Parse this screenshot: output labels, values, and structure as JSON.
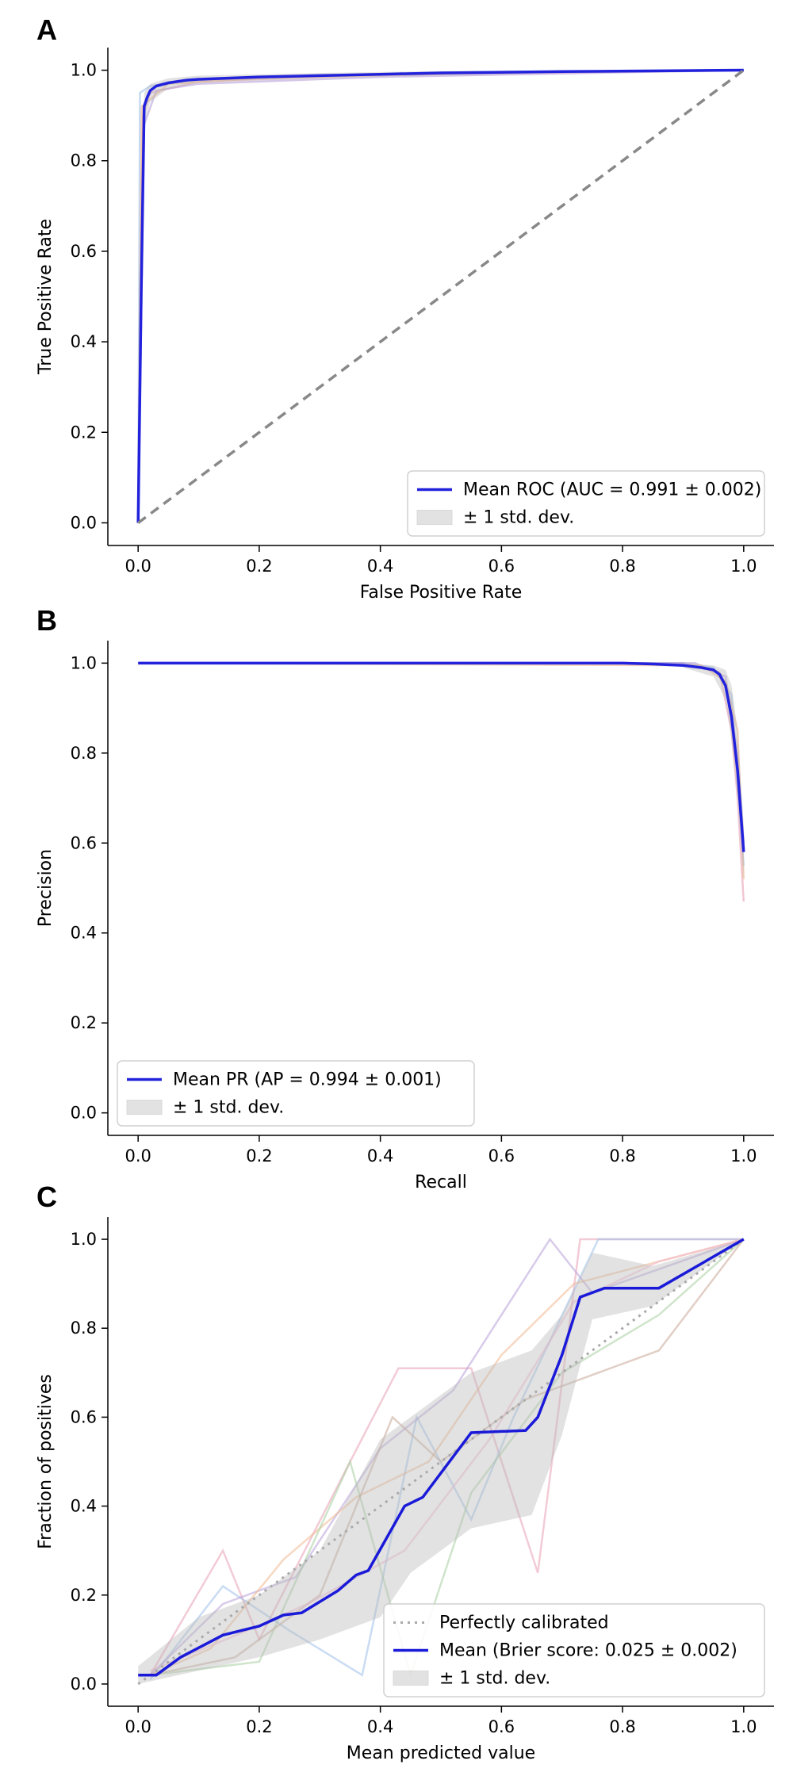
{
  "charts": [
    {
      "panel_label": "A",
      "xlabel": "False Positive Rate",
      "ylabel": "True Positive Rate"
    },
    {
      "panel_label": "B",
      "xlabel": "Recall",
      "ylabel": "Precision"
    },
    {
      "panel_label": "C",
      "xlabel": "Mean predicted value",
      "ylabel": "Fraction of positives"
    }
  ],
  "chart_data": [
    {
      "type": "line",
      "title": "",
      "xlabel": "False Positive Rate",
      "ylabel": "True Positive Rate",
      "xlim": [
        -0.05,
        1.05
      ],
      "ylim": [
        -0.05,
        1.05
      ],
      "xticks": [
        "0.0",
        "0.2",
        "0.4",
        "0.6",
        "0.8",
        "1.0"
      ],
      "yticks": [
        "0.0",
        "0.2",
        "0.4",
        "0.6",
        "0.8",
        "1.0"
      ],
      "legend_position": "lower-right",
      "series": [
        {
          "name": "Mean ROC (AUC = 0.991 ± 0.002)",
          "color": "#2222dd",
          "x": [
            0,
            0.005,
            0.01,
            0.015,
            0.02,
            0.03,
            0.05,
            0.08,
            0.1,
            0.2,
            0.3,
            0.4,
            0.5,
            0.7,
            0.9,
            1.0
          ],
          "y": [
            0,
            0.5,
            0.92,
            0.94,
            0.955,
            0.965,
            0.972,
            0.978,
            0.98,
            0.985,
            0.988,
            0.991,
            0.994,
            0.997,
            0.999,
            1.0
          ]
        },
        {
          "name": "± 1 std. dev.",
          "color": "#bbbbbb",
          "x": [
            0,
            0.01,
            0.02,
            0.05,
            0.1,
            0.3,
            0.5,
            0.8,
            1.0
          ],
          "y_lower": [
            0,
            0.88,
            0.93,
            0.96,
            0.972,
            0.982,
            0.989,
            0.996,
            1.0
          ],
          "y_upper": [
            0,
            0.95,
            0.97,
            0.982,
            0.988,
            0.994,
            0.998,
            1.0,
            1.0
          ]
        },
        {
          "name": "",
          "color": "#888888",
          "x": [
            0,
            1
          ],
          "y": [
            0,
            1
          ]
        }
      ]
    },
    {
      "type": "line",
      "title": "",
      "xlabel": "Recall",
      "ylabel": "Precision",
      "xlim": [
        -0.05,
        1.05
      ],
      "ylim": [
        -0.05,
        1.05
      ],
      "xticks": [
        "0.0",
        "0.2",
        "0.4",
        "0.6",
        "0.8",
        "1.0"
      ],
      "yticks": [
        "0.0",
        "0.2",
        "0.4",
        "0.6",
        "0.8",
        "1.0"
      ],
      "legend_position": "lower-left",
      "series": [
        {
          "name": "Mean PR (AP = 0.994 ± 0.001)",
          "color": "#2222dd",
          "x": [
            0,
            0.2,
            0.4,
            0.6,
            0.8,
            0.85,
            0.9,
            0.93,
            0.95,
            0.96,
            0.97,
            0.98,
            0.99,
            1.0
          ],
          "y": [
            1.0,
            1.0,
            1.0,
            1.0,
            1.0,
            0.998,
            0.995,
            0.99,
            0.985,
            0.975,
            0.95,
            0.88,
            0.76,
            0.58
          ]
        },
        {
          "name": "± 1 std. dev.",
          "color": "#bbbbbb",
          "x": [
            0.9,
            0.95,
            0.97,
            0.98,
            0.99,
            1.0
          ],
          "y_lower": [
            0.99,
            0.97,
            0.92,
            0.83,
            0.7,
            0.52
          ],
          "y_upper": [
            1.0,
            0.995,
            0.985,
            0.95,
            0.85,
            0.64
          ]
        }
      ]
    },
    {
      "type": "line",
      "title": "",
      "xlabel": "Mean predicted value",
      "ylabel": "Fraction of positives",
      "xlim": [
        -0.05,
        1.05
      ],
      "ylim": [
        -0.05,
        1.05
      ],
      "xticks": [
        "0.0",
        "0.2",
        "0.4",
        "0.6",
        "0.8",
        "1.0"
      ],
      "yticks": [
        "0.0",
        "0.2",
        "0.4",
        "0.6",
        "0.8",
        "1.0"
      ],
      "legend_position": "lower-right",
      "series": [
        {
          "name": "Perfectly calibrated",
          "color": "#aaaaaa",
          "x": [
            0,
            1
          ],
          "y": [
            0,
            1
          ]
        },
        {
          "name": "Mean (Brier score: 0.025 ± 0.002)",
          "color": "#1a1ad8",
          "x": [
            0,
            0.03,
            0.07,
            0.14,
            0.2,
            0.24,
            0.27,
            0.33,
            0.36,
            0.38,
            0.44,
            0.47,
            0.55,
            0.64,
            0.66,
            0.7,
            0.73,
            0.77,
            0.86,
            1.0
          ],
          "y": [
            0.02,
            0.02,
            0.06,
            0.11,
            0.13,
            0.155,
            0.16,
            0.21,
            0.245,
            0.255,
            0.4,
            0.42,
            0.565,
            0.57,
            0.6,
            0.74,
            0.87,
            0.89,
            0.89,
            1.0
          ]
        },
        {
          "name": "± 1 std. dev.",
          "color": "#bbbbbb",
          "x": [
            0,
            0.1,
            0.2,
            0.3,
            0.4,
            0.45,
            0.55,
            0.65,
            0.7,
            0.75,
            0.85,
            1.0
          ],
          "y_lower": [
            0.0,
            0.03,
            0.06,
            0.1,
            0.15,
            0.25,
            0.35,
            0.38,
            0.56,
            0.82,
            0.85,
            1.0
          ],
          "y_upper": [
            0.04,
            0.15,
            0.2,
            0.3,
            0.55,
            0.6,
            0.7,
            0.75,
            0.83,
            0.97,
            0.94,
            1.0
          ]
        }
      ]
    }
  ]
}
